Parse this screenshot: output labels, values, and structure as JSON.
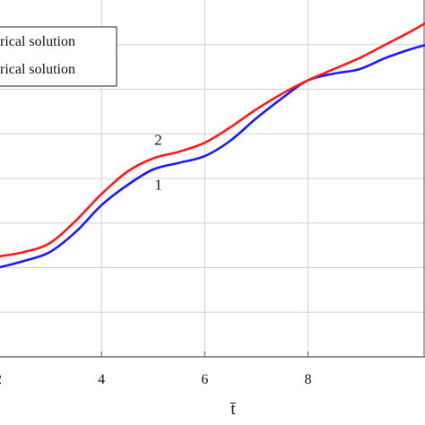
{
  "chart_data": {
    "type": "line",
    "xlabel": "t̄",
    "ylabel": "",
    "xlim": [
      2.0,
      10.3
    ],
    "ylim": [
      0,
      8
    ],
    "x_ticks": [
      2,
      4,
      6,
      8
    ],
    "x_tick_labels": [
      "2",
      "4",
      "6",
      "8"
    ],
    "y_grid": [
      1,
      2,
      3,
      4,
      5,
      6,
      7
    ],
    "grid": true,
    "legend_position": "top-left",
    "legend": [
      {
        "text": "rical solution",
        "color": "#000000"
      },
      {
        "text": "rical solution",
        "color": "#000000"
      }
    ],
    "series": [
      {
        "name": "1",
        "color": "#1a1aff",
        "x": [
          2.0,
          2.5,
          3.0,
          3.5,
          4.0,
          4.5,
          5.0,
          5.5,
          6.0,
          6.5,
          7.0,
          7.5,
          8.0,
          8.5,
          9.0,
          9.5,
          10.0,
          10.3
        ],
        "y": [
          2.0,
          2.15,
          2.35,
          2.8,
          3.4,
          3.85,
          4.2,
          4.35,
          4.5,
          4.85,
          5.35,
          5.8,
          6.2,
          6.35,
          6.45,
          6.7,
          6.9,
          7.0
        ]
      },
      {
        "name": "2",
        "color": "#ff1a1a",
        "x": [
          2.0,
          2.5,
          3.0,
          3.5,
          4.0,
          4.5,
          5.0,
          5.5,
          6.0,
          6.5,
          7.0,
          7.5,
          8.0,
          8.5,
          9.0,
          9.5,
          10.0,
          10.3
        ],
        "y": [
          2.25,
          2.35,
          2.55,
          3.05,
          3.65,
          4.15,
          4.45,
          4.6,
          4.8,
          5.15,
          5.55,
          5.9,
          6.2,
          6.45,
          6.7,
          7.0,
          7.3,
          7.5
        ]
      }
    ],
    "curve_labels": [
      {
        "text": "2",
        "x": 5.1,
        "y": 4.75
      },
      {
        "text": "1",
        "x": 5.1,
        "y": 3.75
      }
    ]
  }
}
